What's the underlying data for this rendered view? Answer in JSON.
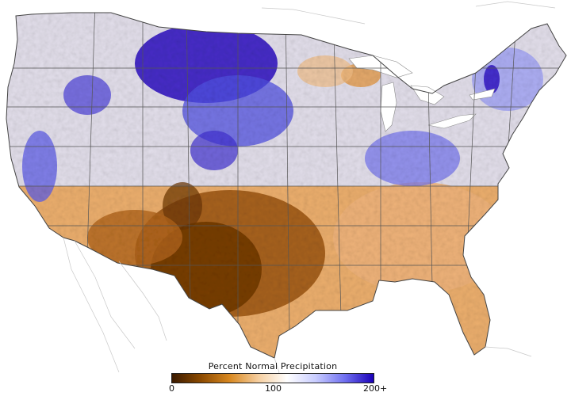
{
  "legend": {
    "title": "Percent Normal Precipitation",
    "tick_min": "0",
    "tick_mid": "100",
    "tick_max": "200+",
    "gradient_colors": [
      "#3a1a00",
      "#8c4a00",
      "#d88820",
      "#f6cfa0",
      "#ffffff",
      "#c8ccff",
      "#7070f0",
      "#1a00b8"
    ]
  },
  "map": {
    "region": "Contiguous United States",
    "colors": {
      "very_dry": "#6b3500",
      "dry": "#c36a12",
      "slightly_dry": "#f1be86",
      "normal": "#f8f4f0",
      "wet": "#9ea4f8",
      "very_wet": "#2a0ec0",
      "border": "#555555"
    }
  }
}
